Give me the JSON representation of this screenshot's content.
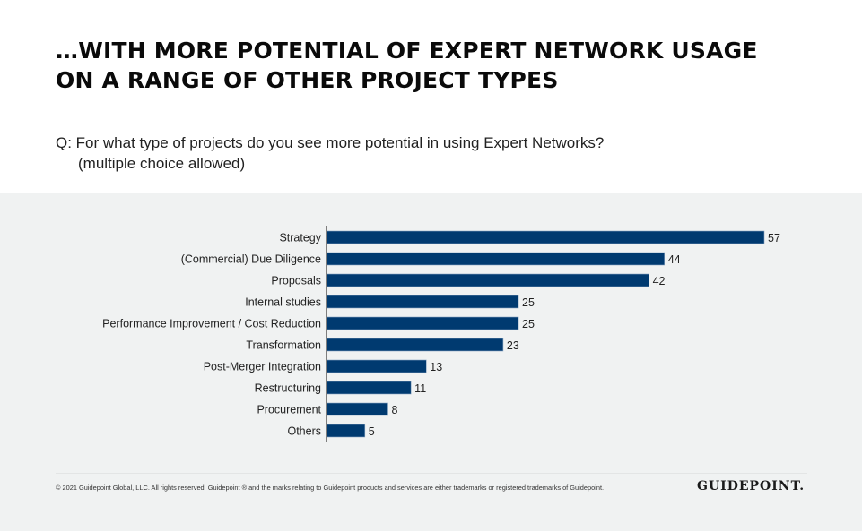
{
  "header": {
    "title_line1": "…WITH MORE POTENTIAL OF EXPERT NETWORK USAGE",
    "title_line2": "ON A RANGE OF OTHER PROJECT TYPES",
    "question_line1": "Q: For what type of projects do you see more potential in using Expert Networks?",
    "question_line2": "(multiple choice allowed)"
  },
  "chart_data": {
    "type": "bar",
    "orientation": "horizontal",
    "title": "",
    "xlabel": "",
    "ylabel": "",
    "categories": [
      "Strategy",
      "(Commercial) Due Diligence",
      "Proposals",
      "Internal studies",
      "Performance Improvement / Cost Reduction",
      "Transformation",
      "Post-Merger Integration",
      "Restructuring",
      "Procurement",
      "Others"
    ],
    "values": [
      57,
      44,
      42,
      25,
      25,
      23,
      13,
      11,
      8,
      5
    ],
    "xlim": [
      0,
      57
    ],
    "grid": false,
    "data_labels": true,
    "bar_color": "#003a70",
    "label_color": "#222222"
  },
  "footer": {
    "copyright": "© 2021 Guidepoint Global, LLC. All rights reserved. Guidepoint ® and the marks relating to Guidepoint products and services are either trademarks or registered trademarks of Guidepoint.",
    "logo": "GUIDEPOINT."
  }
}
